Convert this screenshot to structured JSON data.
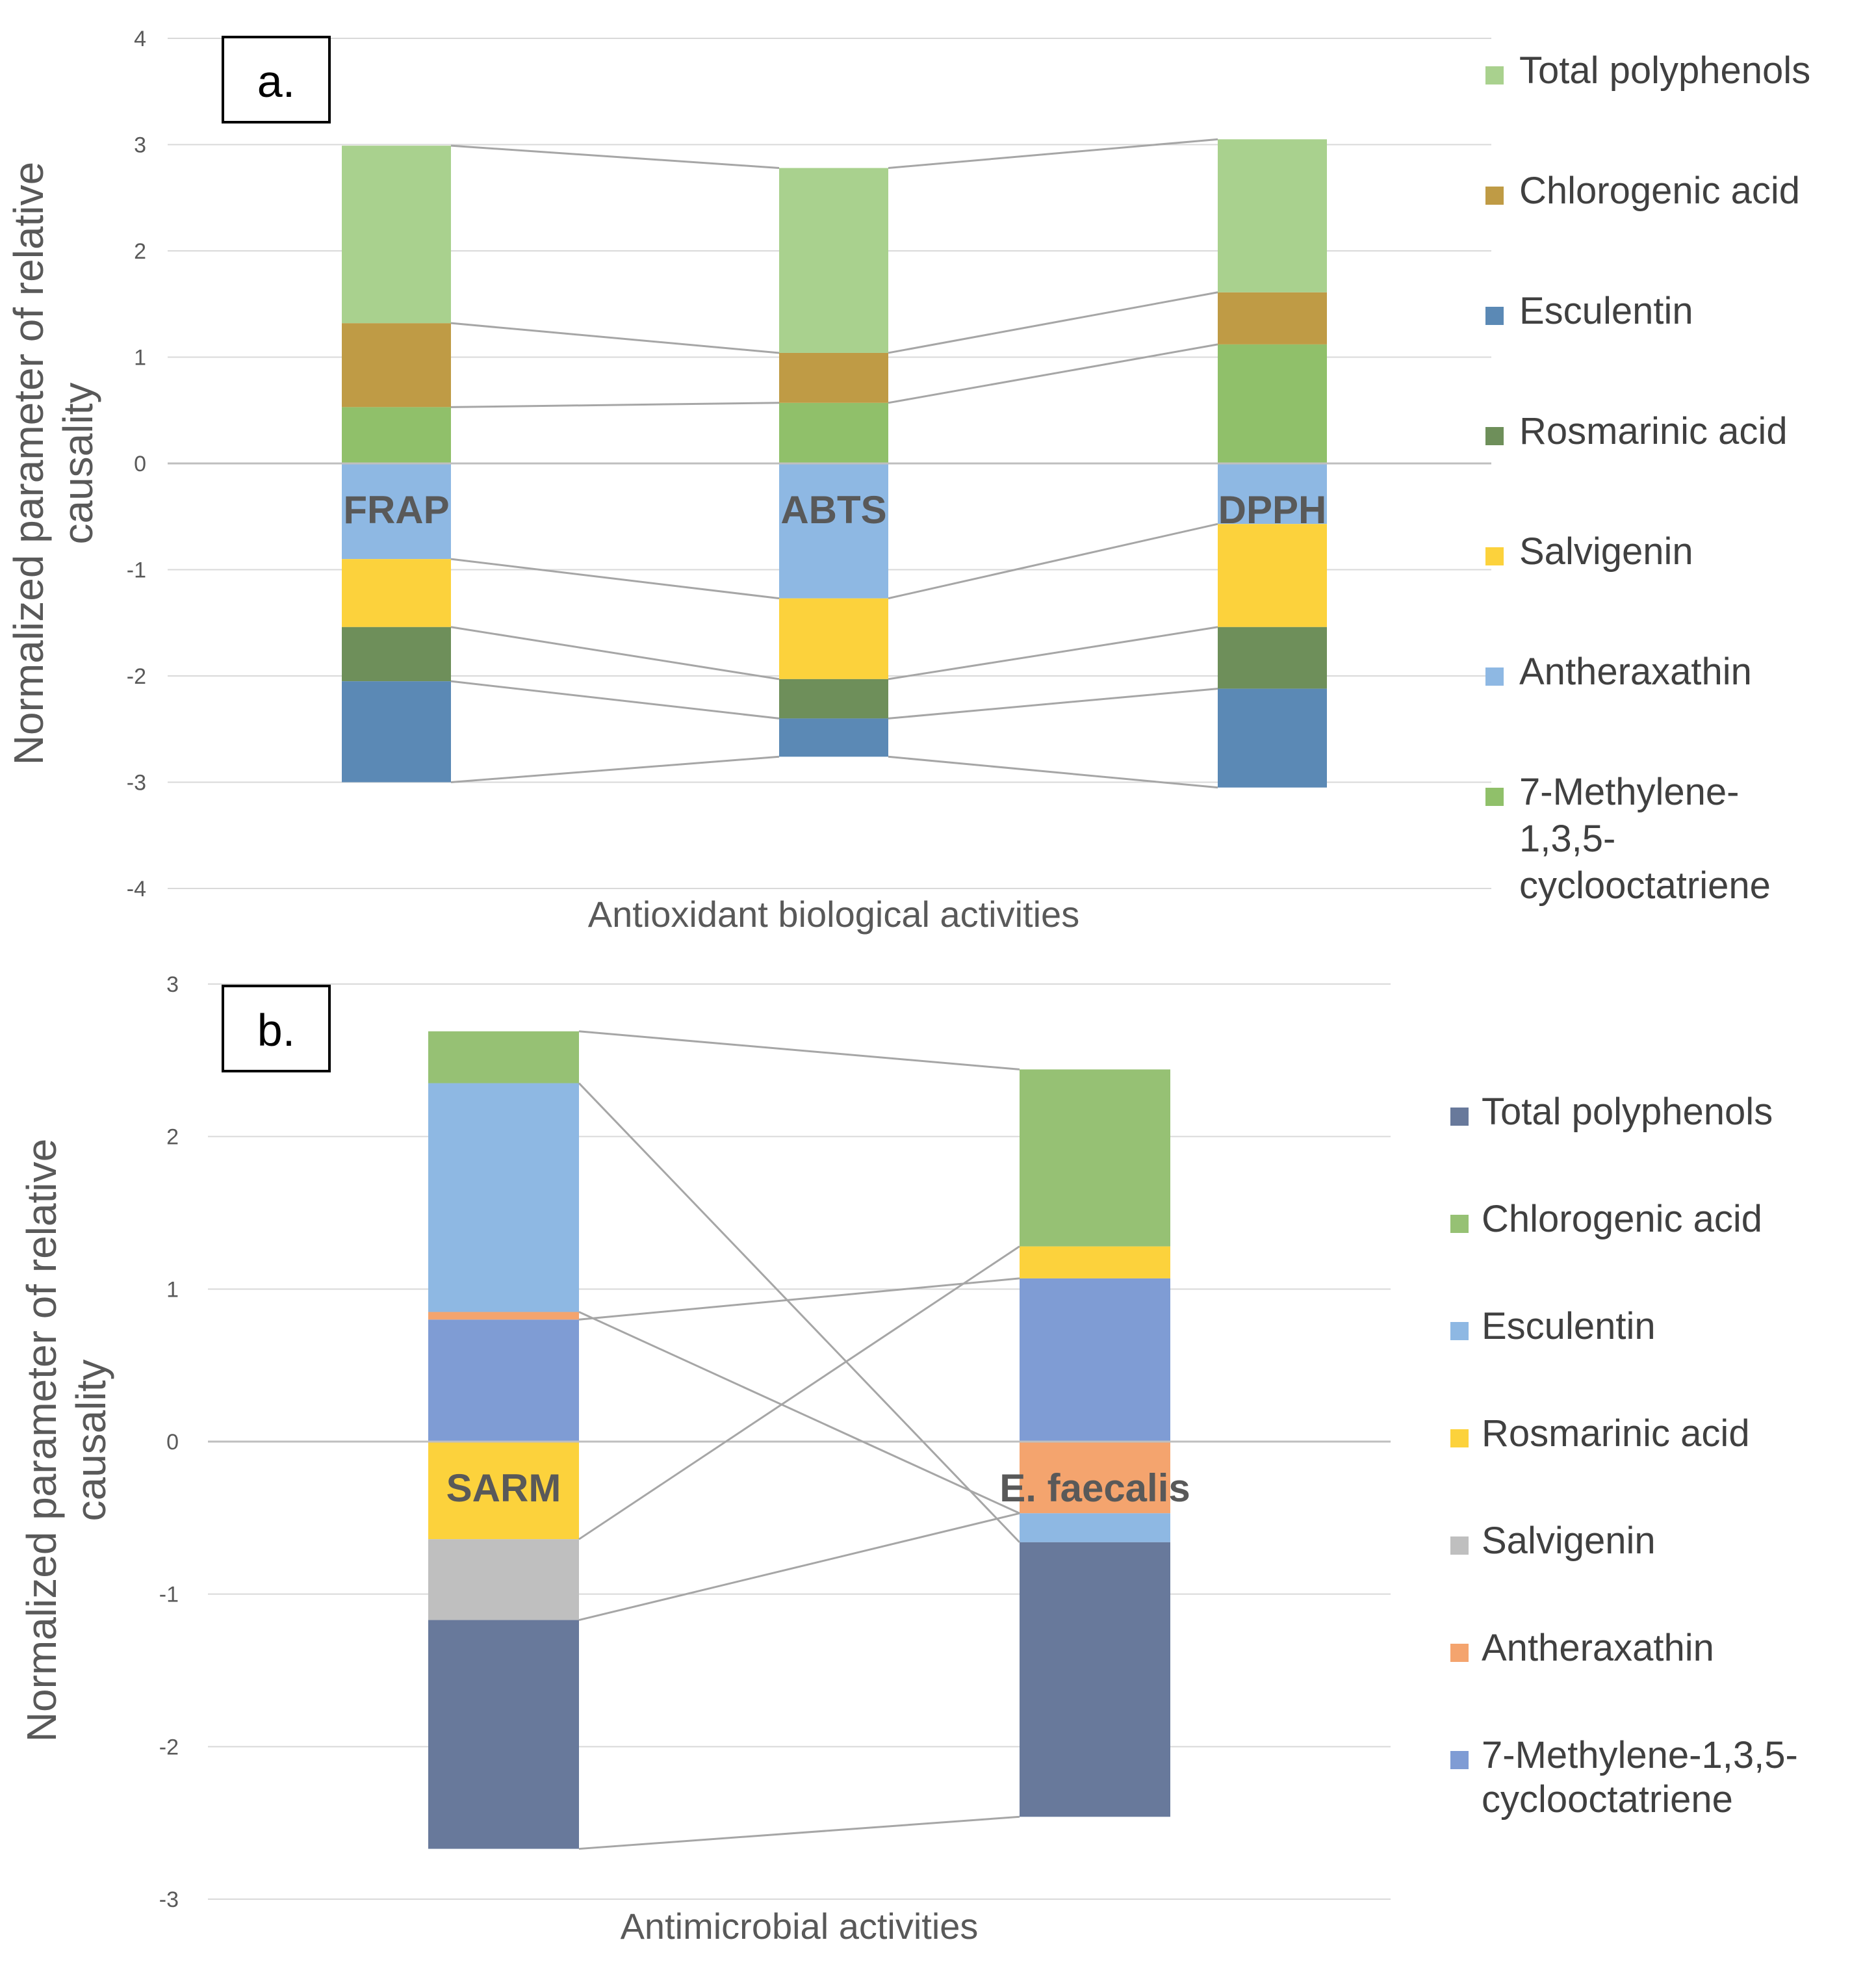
{
  "chart_data": [
    {
      "type": "bar",
      "stacked": true,
      "panel_label": "a.",
      "xlabel": "Antioxidant biological activities",
      "ylabel": "Normalized parameter of relative causality",
      "ylim": [
        -4,
        4
      ],
      "yticks": [
        "4",
        "3",
        "2",
        "1",
        "0",
        "-1",
        "-2",
        "-3",
        "-4"
      ],
      "categories": [
        "FRAP",
        "ABTS",
        "DPPH"
      ],
      "legend_position": "right",
      "legend": [
        "Total polyphenols",
        "Chlorogenic acid",
        "Esculentin",
        "Rosmarinic acid",
        "Salvigenin",
        "Antheraxathin",
        "7-Methylene-1,3,5-cyclooctatriene"
      ],
      "legend_lines": [
        [
          "Total polyphenols"
        ],
        [
          "Chlorogenic acid"
        ],
        [
          "Esculentin"
        ],
        [
          "Rosmarinic acid"
        ],
        [
          "Salvigenin"
        ],
        [
          "Antheraxathin"
        ],
        [
          "7-Methylene-",
          "1,3,5-",
          "cyclooctatriene"
        ]
      ],
      "legend_colors": [
        "#a9d18e",
        "#bf9b45",
        "#5b89b5",
        "#6e8f5a",
        "#fcd23c",
        "#8eb8e3",
        "#90c06a"
      ],
      "series": [
        {
          "name": "7-Methylene-1,3,5-cyclooctatriene",
          "color": "#90c06a",
          "values": [
            0.53,
            0.57,
            1.12
          ]
        },
        {
          "name": "Chlorogenic acid",
          "color": "#bf9b45",
          "values": [
            0.79,
            0.47,
            0.49
          ]
        },
        {
          "name": "Total polyphenols",
          "color": "#a9d18e",
          "values": [
            1.67,
            1.74,
            1.44
          ]
        },
        {
          "name": "Antheraxathin",
          "color": "#8eb8e3",
          "values": [
            -0.9,
            -1.27,
            -0.57
          ]
        },
        {
          "name": "Salvigenin",
          "color": "#fcd23c",
          "values": [
            -0.64,
            -0.76,
            -0.97
          ]
        },
        {
          "name": "Rosmarinic acid",
          "color": "#6e8f5a",
          "values": [
            -0.51,
            -0.37,
            -0.58
          ]
        },
        {
          "name": "Esculentin",
          "color": "#5b89b5",
          "values": [
            -0.95,
            -0.36,
            -0.93
          ]
        }
      ]
    },
    {
      "type": "bar",
      "stacked": true,
      "panel_label": "b.",
      "xlabel": "Antimicrobial activities",
      "ylabel": "Normalized parameter of relative causality",
      "ylim": [
        -3,
        3
      ],
      "yticks": [
        "3",
        "2",
        "1",
        "0",
        "-1",
        "-2",
        "-3"
      ],
      "categories": [
        "SARM",
        "E. faecalis"
      ],
      "legend_position": "right",
      "legend": [
        "Total polyphenols",
        "Chlorogenic acid",
        "Esculentin",
        "Rosmarinic acid",
        "Salvigenin",
        "Antheraxathin",
        "7-Methylene-1,3,5-cyclooctatriene"
      ],
      "legend_lines": [
        [
          "Total polyphenols"
        ],
        [
          "Chlorogenic acid"
        ],
        [
          "Esculentin"
        ],
        [
          "Rosmarinic acid"
        ],
        [
          "Salvigenin"
        ],
        [
          "Antheraxathin"
        ],
        [
          "7-Methylene-1,3,5-",
          "cyclooctatriene"
        ]
      ],
      "legend_colors": [
        "#68799b",
        "#96c174",
        "#8eb8e3",
        "#fcd23c",
        "#bfbfbf",
        "#f4a46e",
        "#7f9cd4"
      ],
      "series": [
        {
          "name": "7-Methylene-1,3,5-cyclooctatriene",
          "color": "#7f9cd4",
          "values": [
            0.8,
            1.07
          ]
        },
        {
          "name": "Antheraxathin",
          "color": "#f4a46e",
          "values": [
            0.05,
            -0.47
          ]
        },
        {
          "name": "Esculentin",
          "color": "#8eb8e3",
          "values": [
            1.5,
            -0.19
          ]
        },
        {
          "name": "Rosmarinic acid",
          "color": "#fcd23c",
          "values": [
            -0.64,
            0.21
          ]
        },
        {
          "name": "Chlorogenic acid",
          "color": "#96c174",
          "values": [
            0.34,
            1.16
          ]
        },
        {
          "name": "Salvigenin",
          "color": "#bfbfbf",
          "values": [
            -0.53,
            0.0
          ]
        },
        {
          "name": "Total polyphenols",
          "color": "#68799b",
          "values": [
            -1.5,
            -1.8
          ]
        }
      ],
      "connector_lines": [
        {
          "from": [
            0,
            "Chlorogenic acid",
            "top"
          ],
          "to": [
            1,
            "Chlorogenic acid",
            "top"
          ]
        },
        {
          "from": [
            0,
            "Esculentin",
            "top"
          ],
          "to": [
            1,
            "Esculentin",
            "bottom"
          ]
        },
        {
          "from": [
            0,
            "Antheraxathin",
            "top"
          ],
          "to": [
            1,
            "Antheraxathin",
            "bottom"
          ]
        },
        {
          "from": [
            0,
            "7-Methylene-1,3,5-cyclooctatriene",
            "top"
          ],
          "to": [
            1,
            "7-Methylene-1,3,5-cyclooctatriene",
            "top"
          ]
        },
        {
          "from": [
            0,
            "Salvigenin",
            "bottom"
          ],
          "to": [
            1,
            "Antheraxathin",
            "bottom"
          ]
        },
        {
          "from": [
            0,
            "Rosmarinic acid",
            "bottom"
          ],
          "to": [
            1,
            "Rosmarinic acid",
            "top"
          ]
        },
        {
          "from": [
            0,
            "Total polyphenols",
            "bottom"
          ],
          "to": [
            1,
            "Total polyphenols",
            "bottom"
          ]
        }
      ]
    }
  ]
}
